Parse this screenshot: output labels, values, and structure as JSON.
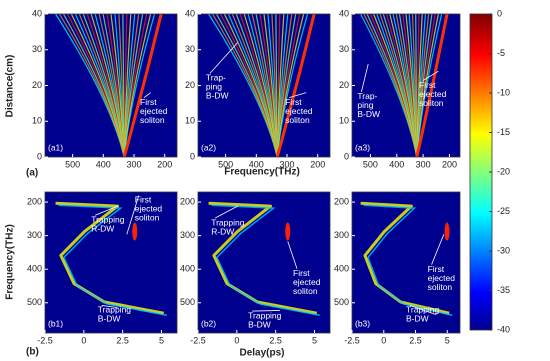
{
  "figure": {
    "top_x_title": "Frequency(THz)",
    "top_y_title": "Distance(cm)",
    "bottom_x_title": "Delay(ps)",
    "bottom_y_title": "Frequency(THz)",
    "top_row_label": "(a)",
    "bottom_row_label": "(b)"
  },
  "chart_data": [
    {
      "type": "heatmap",
      "panel_label": "(a1)",
      "xlim": [
        590,
        160
      ],
      "ylim": [
        0,
        40
      ],
      "xticks": [
        500,
        400,
        300,
        200
      ],
      "yticks": [
        0,
        10,
        20,
        30,
        40
      ],
      "annotations": [
        {
          "lines": [
            "First",
            "ejected",
            "soliton"
          ]
        }
      ]
    },
    {
      "type": "heatmap",
      "panel_label": "(a2)",
      "xlim": [
        590,
        160
      ],
      "ylim": [
        0,
        40
      ],
      "xticks": [
        500,
        400,
        300,
        200
      ],
      "yticks": [
        0,
        10,
        20,
        30,
        40
      ],
      "annotations": [
        {
          "lines": [
            "Trap-",
            "ping",
            "B-DW"
          ]
        },
        {
          "lines": [
            "First",
            "ejected",
            "soliton"
          ]
        }
      ]
    },
    {
      "type": "heatmap",
      "panel_label": "(a3)",
      "xlim": [
        570,
        160
      ],
      "ylim": [
        0,
        40
      ],
      "xticks": [
        500,
        400,
        300,
        200
      ],
      "yticks": [
        0,
        10,
        20,
        30,
        40
      ],
      "annotations": [
        {
          "lines": [
            "Trap-",
            "ping",
            "B-DW"
          ]
        },
        {
          "lines": [
            "First",
            "ejected",
            "soliton"
          ]
        }
      ]
    },
    {
      "type": "heatmap",
      "panel_label": "(b1)",
      "xlim": [
        -2.5,
        6
      ],
      "ylim": [
        590,
        170
      ],
      "xticks": [
        -2.5,
        0,
        2.5,
        5
      ],
      "yticks": [
        200,
        300,
        400,
        500
      ],
      "annotations": [
        {
          "lines": [
            "Trapping",
            "R-DW"
          ]
        },
        {
          "lines": [
            "First",
            "ejected",
            "soliton"
          ]
        },
        {
          "lines": [
            "Trapping",
            "B-DW"
          ]
        }
      ]
    },
    {
      "type": "heatmap",
      "panel_label": "(b2)",
      "xlim": [
        -2.5,
        6
      ],
      "ylim": [
        590,
        170
      ],
      "xticks": [
        -2.5,
        0,
        2.5,
        5
      ],
      "yticks": [
        200,
        300,
        400,
        500
      ],
      "annotations": [
        {
          "lines": [
            "Trapping",
            "R-DW"
          ]
        },
        {
          "lines": [
            "First",
            "ejected",
            "soliton"
          ]
        },
        {
          "lines": [
            "Trapping",
            "B-DW"
          ]
        }
      ]
    },
    {
      "type": "heatmap",
      "panel_label": "(b3)",
      "xlim": [
        -2.5,
        6
      ],
      "ylim": [
        590,
        170
      ],
      "xticks": [
        -2.5,
        0,
        2.5,
        5
      ],
      "yticks": [
        200,
        300,
        400,
        500
      ],
      "annotations": [
        {
          "lines": [
            "First",
            "ejected",
            "soliton"
          ]
        },
        {
          "lines": [
            "Trapping",
            "B-DW"
          ]
        }
      ]
    },
    {
      "type": "colorbar",
      "ylim": [
        -40,
        0
      ],
      "yticks": [
        0,
        -5,
        -10,
        -15,
        -20,
        -25,
        -30,
        -35,
        -40
      ]
    }
  ]
}
